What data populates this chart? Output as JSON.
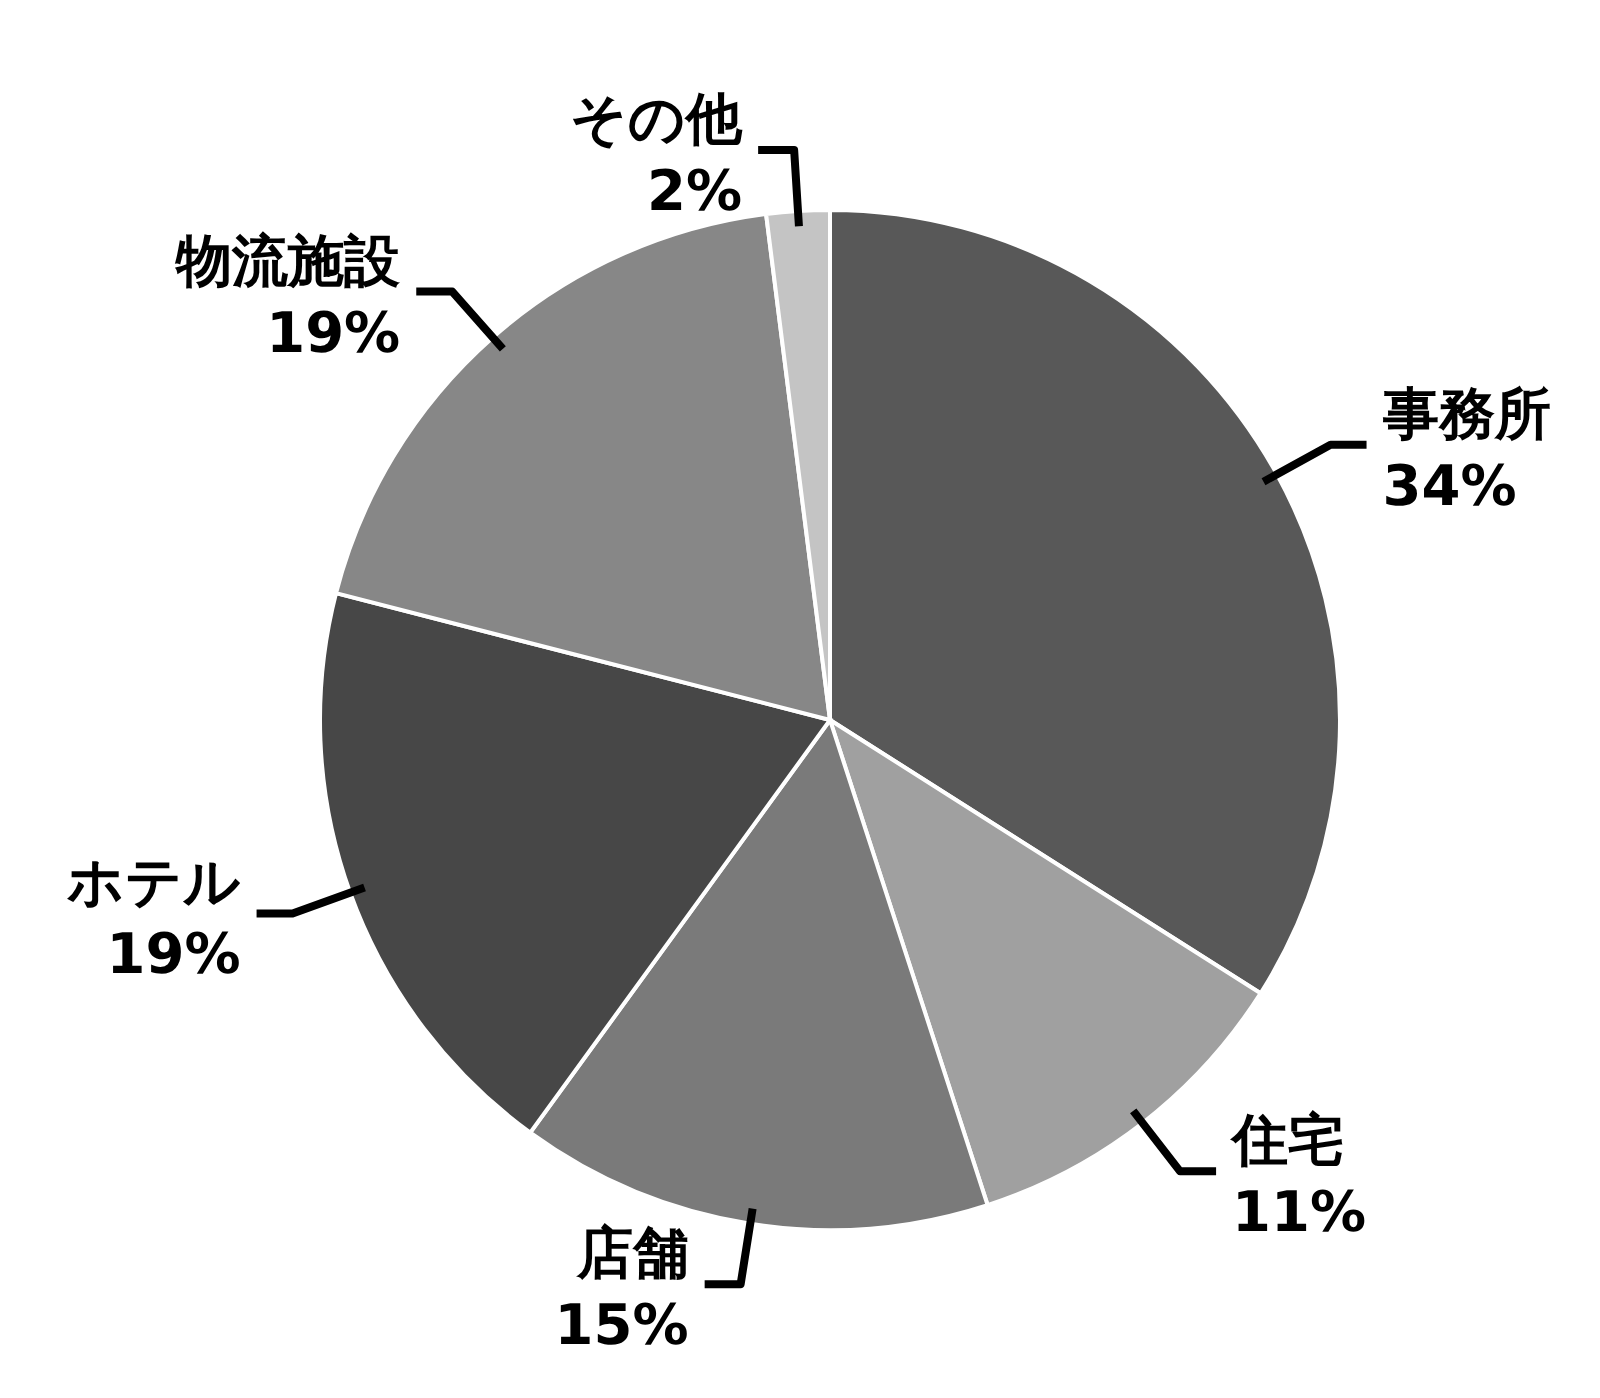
{
  "chart_data": {
    "type": "pie",
    "categories": [
      "事務所",
      "住宅",
      "店舗",
      "ホテル",
      "物流施設",
      "その他"
    ],
    "values": [
      34,
      11,
      15,
      19,
      19,
      2
    ],
    "value_labels": [
      "34%",
      "11%",
      "15%",
      "19%",
      "19%",
      "2%"
    ],
    "colors": [
      "#585858",
      "#a0a0a0",
      "#7a7a7a",
      "#474747",
      "#878787",
      "#c4c4c4"
    ]
  }
}
